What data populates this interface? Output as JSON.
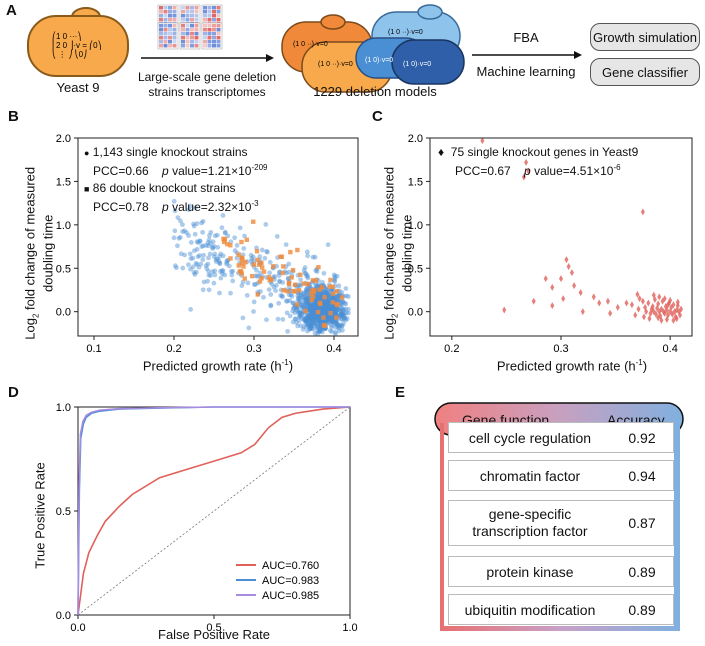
{
  "panel_labels": {
    "a": "A",
    "b": "B",
    "c": "C",
    "d": "D",
    "e": "E"
  },
  "panel_a": {
    "yeast_label": "Yeast 9",
    "arrow1_label_line1": "Large-scale gene deletion",
    "arrow1_label_line2": "strains transcriptomes",
    "models_label": "1229 deletion models",
    "fba_label": "FBA",
    "ml_label": "Machine learning",
    "box1": "Growth simulation",
    "box2": "Gene classifier",
    "matrix_eq": "·v = 0"
  },
  "colors": {
    "blue": "#4a8fd4",
    "orange": "#f08a3a",
    "red": "#e0605a",
    "purple": "#a78be0",
    "cell": "#f7a94b"
  },
  "chart_data": [
    {
      "id": "B",
      "type": "scatter",
      "xlabel": "Predicted growth rate (h",
      "xlabel_sup": "-1",
      "xlabel_end": ")",
      "ylabel_line1": "Log",
      "ylabel_sub": "2",
      "ylabel_line1_rest": " fold change of measured",
      "ylabel_line2": "doubling time",
      "xlim": [
        0.08,
        0.43
      ],
      "ylim": [
        -0.28,
        2.0
      ],
      "xticks": [
        "0.1",
        "0.2",
        "0.3",
        "0.4"
      ],
      "xtick_values": [
        0.1,
        0.2,
        0.3,
        0.4
      ],
      "yticks": [
        "0.0",
        "0.5",
        "1.0",
        "1.5",
        "2.0"
      ],
      "ytick_values": [
        0.0,
        0.5,
        1.0,
        1.5,
        2.0
      ],
      "legend": [
        {
          "marker": "●",
          "title": "1,143 single knockout strains",
          "pcc": "PCC=0.66",
          "p_label": "p",
          "p_value": "value=1.21×10",
          "p_exp": "-209"
        },
        {
          "marker": "■",
          "title": "86 double knockout strains",
          "pcc": "PCC=0.78",
          "p_label": "p",
          "p_value": "value=2.32×10",
          "p_exp": "-3"
        }
      ],
      "series": [
        {
          "name": "single knockout",
          "color": "#4a8fd4",
          "n": 1143
        },
        {
          "name": "double knockout",
          "color": "#f08a3a",
          "n": 86
        }
      ]
    },
    {
      "id": "C",
      "type": "scatter",
      "xlabel": "Predicted growth rate (h",
      "xlabel_sup": "-1",
      "xlabel_end": ")",
      "ylabel_line1": "Log",
      "ylabel_sub": "2",
      "ylabel_line1_rest": " fold change of measured",
      "ylabel_line2": "doubling time",
      "xlim": [
        0.18,
        0.42
      ],
      "ylim": [
        -0.28,
        2.0
      ],
      "xticks": [
        "0.2",
        "0.3",
        "0.4"
      ],
      "xtick_values": [
        0.2,
        0.3,
        0.4
      ],
      "yticks": [
        "0.0",
        "0.5",
        "1.0",
        "1.5",
        "2.0"
      ],
      "ytick_values": [
        0.0,
        0.5,
        1.0,
        1.5,
        2.0
      ],
      "legend": {
        "marker": "♦",
        "title": "75 single knockout genes in Yeast9",
        "pcc": "PCC=0.67",
        "p_label": "p",
        "p_value": "value=4.51×10",
        "p_exp": "-6"
      },
      "points": [
        [
          0.228,
          1.97
        ],
        [
          0.268,
          1.72
        ],
        [
          0.27,
          1.62
        ],
        [
          0.266,
          1.55
        ],
        [
          0.375,
          1.15
        ],
        [
          0.305,
          0.6
        ],
        [
          0.307,
          0.52
        ],
        [
          0.31,
          0.45
        ],
        [
          0.3,
          0.38
        ],
        [
          0.286,
          0.38
        ],
        [
          0.312,
          0.3
        ],
        [
          0.292,
          0.28
        ],
        [
          0.318,
          0.22
        ],
        [
          0.33,
          0.17
        ],
        [
          0.302,
          0.15
        ],
        [
          0.335,
          0.1
        ],
        [
          0.343,
          0.12
        ],
        [
          0.36,
          0.1
        ],
        [
          0.352,
          0.05
        ],
        [
          0.275,
          0.12
        ],
        [
          0.292,
          0.07
        ],
        [
          0.248,
          0.02
        ],
        [
          0.32,
          0.0
        ],
        [
          0.345,
          -0.02
        ],
        [
          0.365,
          0.08
        ],
        [
          0.37,
          0.2
        ],
        [
          0.372,
          0.15
        ],
        [
          0.375,
          0.12
        ],
        [
          0.377,
          0.05
        ],
        [
          0.378,
          0.0
        ],
        [
          0.38,
          0.1
        ],
        [
          0.382,
          -0.02
        ],
        [
          0.384,
          0.06
        ],
        [
          0.385,
          0.0
        ],
        [
          0.386,
          0.14
        ],
        [
          0.387,
          -0.03
        ],
        [
          0.388,
          0.04
        ],
        [
          0.389,
          0.09
        ],
        [
          0.39,
          0.0
        ],
        [
          0.391,
          -0.05
        ],
        [
          0.392,
          0.03
        ],
        [
          0.393,
          0.12
        ],
        [
          0.394,
          0.0
        ],
        [
          0.395,
          -0.02
        ],
        [
          0.396,
          0.06
        ],
        [
          0.397,
          0.02
        ],
        [
          0.398,
          -0.04
        ],
        [
          0.399,
          0.1
        ],
        [
          0.4,
          0.0
        ],
        [
          0.401,
          0.05
        ],
        [
          0.402,
          -0.03
        ],
        [
          0.403,
          0.08
        ],
        [
          0.404,
          0.0
        ],
        [
          0.405,
          -0.06
        ],
        [
          0.406,
          0.02
        ],
        [
          0.407,
          0.11
        ],
        [
          0.408,
          0.0
        ],
        [
          0.409,
          -0.04
        ],
        [
          0.41,
          0.03
        ],
        [
          0.376,
          -0.06
        ],
        [
          0.381,
          -0.08
        ],
        [
          0.389,
          -0.07
        ],
        [
          0.397,
          -0.09
        ],
        [
          0.403,
          -0.1
        ],
        [
          0.371,
          0.03
        ],
        [
          0.368,
          -0.04
        ],
        [
          0.395,
          0.15
        ],
        [
          0.385,
          0.19
        ],
        [
          0.39,
          0.17
        ],
        [
          0.4,
          0.13
        ],
        [
          0.407,
          0.07
        ],
        [
          0.383,
          0.03
        ],
        [
          0.392,
          -0.1
        ],
        [
          0.398,
          0.08
        ],
        [
          0.406,
          -0.08
        ]
      ]
    },
    {
      "id": "D",
      "type": "line",
      "xlabel": "False Positive Rate",
      "ylabel": "True Positive Rate",
      "xlim": [
        0,
        1
      ],
      "ylim": [
        0,
        1
      ],
      "xticks": [
        "0.0",
        "0.5",
        "1.0"
      ],
      "xtick_values": [
        0.0,
        0.5,
        1.0
      ],
      "yticks": [
        "0.0",
        "0.5",
        "1.0"
      ],
      "ytick_values": [
        0.0,
        0.5,
        1.0
      ],
      "series": [
        {
          "name": "AUC=0.760",
          "color": "#e0605a",
          "x": [
            0,
            0.01,
            0.02,
            0.04,
            0.07,
            0.1,
            0.15,
            0.2,
            0.3,
            0.4,
            0.5,
            0.6,
            0.65,
            0.7,
            0.75,
            0.8,
            0.9,
            1.0
          ],
          "y": [
            0,
            0.1,
            0.2,
            0.3,
            0.38,
            0.45,
            0.52,
            0.58,
            0.66,
            0.7,
            0.74,
            0.78,
            0.82,
            0.9,
            0.95,
            0.97,
            0.99,
            1.0
          ]
        },
        {
          "name": "AUC=0.983",
          "color": "#4a8fd4",
          "x": [
            0,
            0.005,
            0.01,
            0.02,
            0.03,
            0.05,
            0.08,
            0.15,
            0.3,
            0.5,
            1.0
          ],
          "y": [
            0,
            0.6,
            0.85,
            0.92,
            0.95,
            0.97,
            0.98,
            0.99,
            0.995,
            1.0,
            1.0
          ]
        },
        {
          "name": "AUC=0.985",
          "color": "#a78be0",
          "x": [
            0,
            0.004,
            0.009,
            0.018,
            0.03,
            0.05,
            0.08,
            0.15,
            0.3,
            0.5,
            1.0
          ],
          "y": [
            0,
            0.62,
            0.87,
            0.93,
            0.96,
            0.975,
            0.985,
            0.992,
            0.996,
            1.0,
            1.0
          ]
        }
      ]
    },
    {
      "id": "E",
      "type": "table",
      "columns": [
        "Gene function",
        "Accuracy"
      ],
      "rows": [
        {
          "function": "cell cycle regulation",
          "accuracy": "0.92"
        },
        {
          "function": "chromatin factor",
          "accuracy": "0.94"
        },
        {
          "function_line1": "gene-specific",
          "function_line2": "transcription factor",
          "accuracy": "0.87"
        },
        {
          "function": "protein kinase",
          "accuracy": "0.89"
        },
        {
          "function": "ubiquitin modification",
          "accuracy": "0.89"
        }
      ]
    }
  ]
}
